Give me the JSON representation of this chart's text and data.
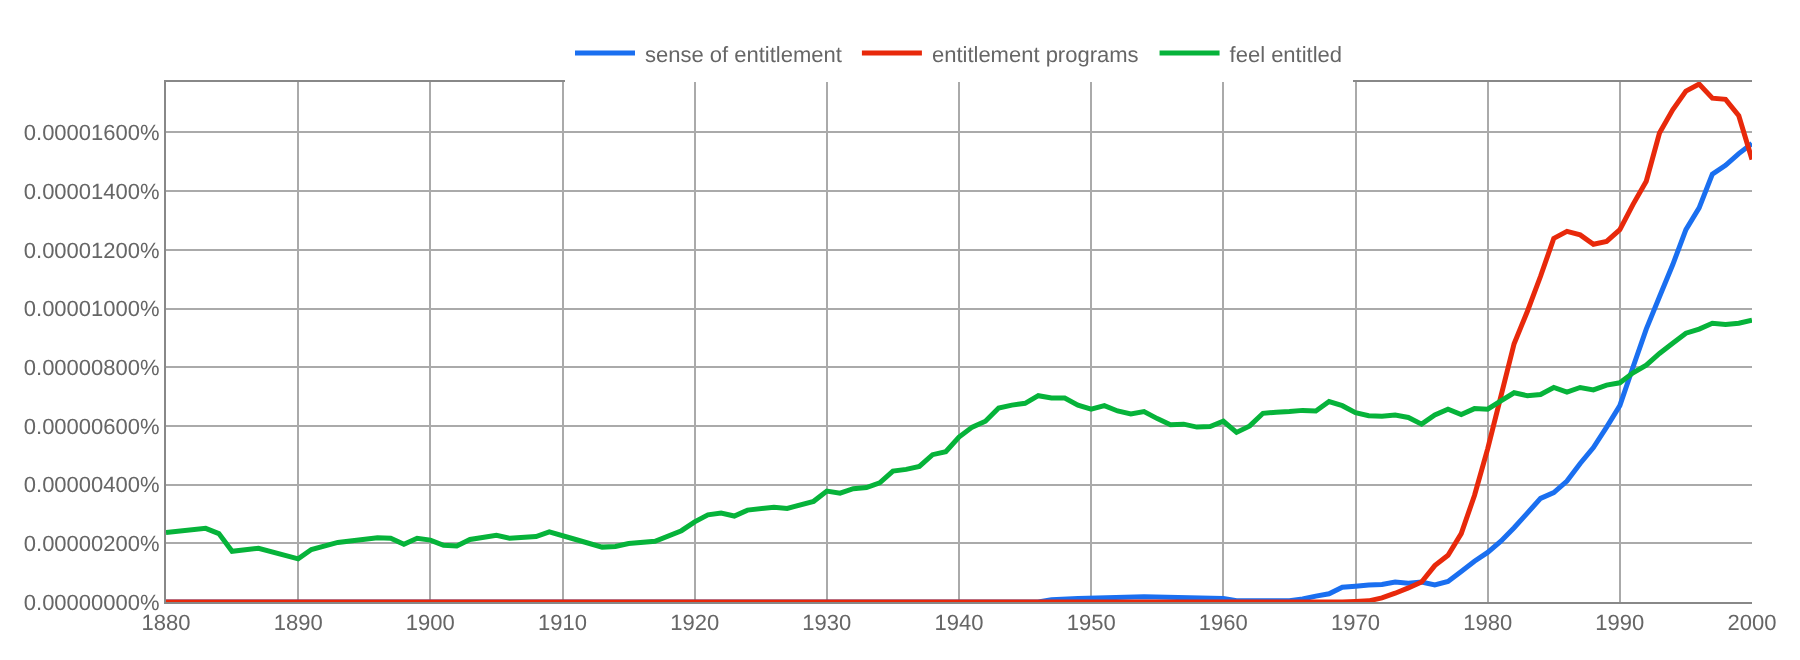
{
  "chart_data": {
    "type": "line",
    "xlim": [
      1880,
      2000
    ],
    "xticks": [
      1880,
      1890,
      1900,
      1910,
      1920,
      1930,
      1940,
      1950,
      1960,
      1970,
      1980,
      1990,
      2000
    ],
    "ylim": [
      0,
      1.772e-05
    ],
    "yticks": [
      {
        "value": 0,
        "label": "0.00000000%"
      },
      {
        "value": 2e-06,
        "label": "0.00000200%"
      },
      {
        "value": 4e-06,
        "label": "0.00000400%"
      },
      {
        "value": 6e-06,
        "label": "0.00000600%"
      },
      {
        "value": 8e-06,
        "label": "0.00000800%"
      },
      {
        "value": 1e-05,
        "label": "0.00001000%"
      },
      {
        "value": 1.2e-05,
        "label": "0.00001200%"
      },
      {
        "value": 1.4e-05,
        "label": "0.00001400%"
      },
      {
        "value": 1.6e-05,
        "label": "0.00001600%"
      }
    ],
    "grid": true,
    "legend": "top",
    "marker": "none",
    "line_style": "solid",
    "series": [
      {
        "name": "sense of entitlement",
        "color": "#1a6ff0",
        "x": [
          1880,
          1946,
          1947,
          1949,
          1954,
          1960,
          1961,
          1965,
          1966,
          1967,
          1968,
          1969,
          1970,
          1971,
          1972,
          1973,
          1974,
          1975,
          1976,
          1977,
          1978,
          1979,
          1980,
          1981,
          1982,
          1983,
          1984,
          1985,
          1986,
          1987,
          1988,
          1989,
          1990,
          1991,
          1992,
          1993,
          1994,
          1995,
          1996,
          1997,
          1998,
          1999,
          2000
        ],
        "values": [
          0,
          0,
          8e-08,
          1.2e-07,
          1.8e-07,
          1.2e-07,
          4e-08,
          4e-08,
          1e-07,
          2e-07,
          2.8e-07,
          5e-07,
          5.4e-07,
          5.8e-07,
          6e-07,
          6.8e-07,
          6.4e-07,
          6.8e-07,
          5.8e-07,
          7e-07,
          1.04e-06,
          1.39e-06,
          1.69e-06,
          2.07e-06,
          2.53e-06,
          3.03e-06,
          3.53e-06,
          3.73e-06,
          4.12e-06,
          4.72e-06,
          5.26e-06,
          5.96e-06,
          6.69e-06,
          8.01e-06,
          9.3e-06,
          1.04e-05,
          1.149e-05,
          1.269e-05,
          1.343e-05,
          1.458e-05,
          1.488e-05,
          1.528e-05,
          1.562e-05
        ]
      },
      {
        "name": "entitlement programs",
        "color": "#e8290b",
        "x": [
          1880,
          1969,
          1970,
          1971,
          1972,
          1973,
          1974,
          1975,
          1976,
          1977,
          1978,
          1979,
          1980,
          1981,
          1982,
          1983,
          1984,
          1985,
          1986,
          1987,
          1988,
          1989,
          1990,
          1991,
          1992,
          1993,
          1994,
          1995,
          1996,
          1997,
          1998,
          1999,
          2000
        ],
        "values": [
          0,
          0,
          2e-08,
          4e-08,
          1.4e-07,
          3e-07,
          4.8e-07,
          6.8e-07,
          1.24e-06,
          1.59e-06,
          2.33e-06,
          3.63e-06,
          5.22e-06,
          7.01e-06,
          8.8e-06,
          9.9e-06,
          1.11e-05,
          1.239e-05,
          1.263e-05,
          1.251e-05,
          1.219e-05,
          1.229e-05,
          1.269e-05,
          1.355e-05,
          1.434e-05,
          1.598e-05,
          1.677e-05,
          1.741e-05,
          1.765e-05,
          1.717e-05,
          1.713e-05,
          1.657e-05,
          1.508e-05
        ]
      },
      {
        "name": "feel entitled",
        "color": "#06b33a",
        "x": [
          1880,
          1883,
          1884,
          1885,
          1887,
          1890,
          1891,
          1893,
          1896,
          1897,
          1898,
          1899,
          1900,
          1901,
          1902,
          1903,
          1905,
          1906,
          1908,
          1909,
          1911,
          1913,
          1914,
          1915,
          1917,
          1919,
          1920,
          1921,
          1922,
          1923,
          1924,
          1926,
          1927,
          1929,
          1930,
          1931,
          1932,
          1933,
          1934,
          1935,
          1936,
          1937,
          1938,
          1939,
          1940,
          1941,
          1942,
          1943,
          1944,
          1945,
          1946,
          1947,
          1948,
          1949,
          1950,
          1951,
          1952,
          1953,
          1954,
          1955,
          1956,
          1957,
          1958,
          1959,
          1960,
          1961,
          1962,
          1963,
          1964,
          1965,
          1966,
          1967,
          1968,
          1969,
          1970,
          1971,
          1972,
          1973,
          1974,
          1975,
          1976,
          1977,
          1978,
          1979,
          1980,
          1981,
          1982,
          1983,
          1984,
          1985,
          1986,
          1987,
          1988,
          1989,
          1990,
          1991,
          1992,
          1993,
          1994,
          1995,
          1996,
          1997,
          1998,
          1999,
          2000
        ],
        "values": [
          2.37e-06,
          2.51e-06,
          2.33e-06,
          1.73e-06,
          1.83e-06,
          1.47e-06,
          1.79e-06,
          2.03e-06,
          2.19e-06,
          2.17e-06,
          1.97e-06,
          2.17e-06,
          2.11e-06,
          1.93e-06,
          1.91e-06,
          2.13e-06,
          2.27e-06,
          2.17e-06,
          2.23e-06,
          2.39e-06,
          2.13e-06,
          1.87e-06,
          1.89e-06,
          1.99e-06,
          2.07e-06,
          2.43e-06,
          2.73e-06,
          2.97e-06,
          3.03e-06,
          2.93e-06,
          3.13e-06,
          3.23e-06,
          3.19e-06,
          3.43e-06,
          3.78e-06,
          3.71e-06,
          3.86e-06,
          3.9e-06,
          4.06e-06,
          4.46e-06,
          4.52e-06,
          4.62e-06,
          5.02e-06,
          5.12e-06,
          5.62e-06,
          5.96e-06,
          6.16e-06,
          6.61e-06,
          6.71e-06,
          6.77e-06,
          7.03e-06,
          6.95e-06,
          6.95e-06,
          6.71e-06,
          6.57e-06,
          6.69e-06,
          6.51e-06,
          6.41e-06,
          6.49e-06,
          6.25e-06,
          6.04e-06,
          6.06e-06,
          5.96e-06,
          5.98e-06,
          6.16e-06,
          5.78e-06,
          6e-06,
          6.43e-06,
          6.47e-06,
          6.49e-06,
          6.53e-06,
          6.51e-06,
          6.83e-06,
          6.69e-06,
          6.45e-06,
          6.35e-06,
          6.33e-06,
          6.37e-06,
          6.29e-06,
          6.06e-06,
          6.37e-06,
          6.57e-06,
          6.39e-06,
          6.59e-06,
          6.57e-06,
          6.85e-06,
          7.13e-06,
          7.03e-06,
          7.07e-06,
          7.31e-06,
          7.15e-06,
          7.31e-06,
          7.23e-06,
          7.39e-06,
          7.47e-06,
          7.81e-06,
          8.07e-06,
          8.47e-06,
          8.82e-06,
          9.16e-06,
          9.3e-06,
          9.5e-06,
          9.46e-06,
          9.5e-06,
          9.6e-06
        ]
      }
    ]
  }
}
